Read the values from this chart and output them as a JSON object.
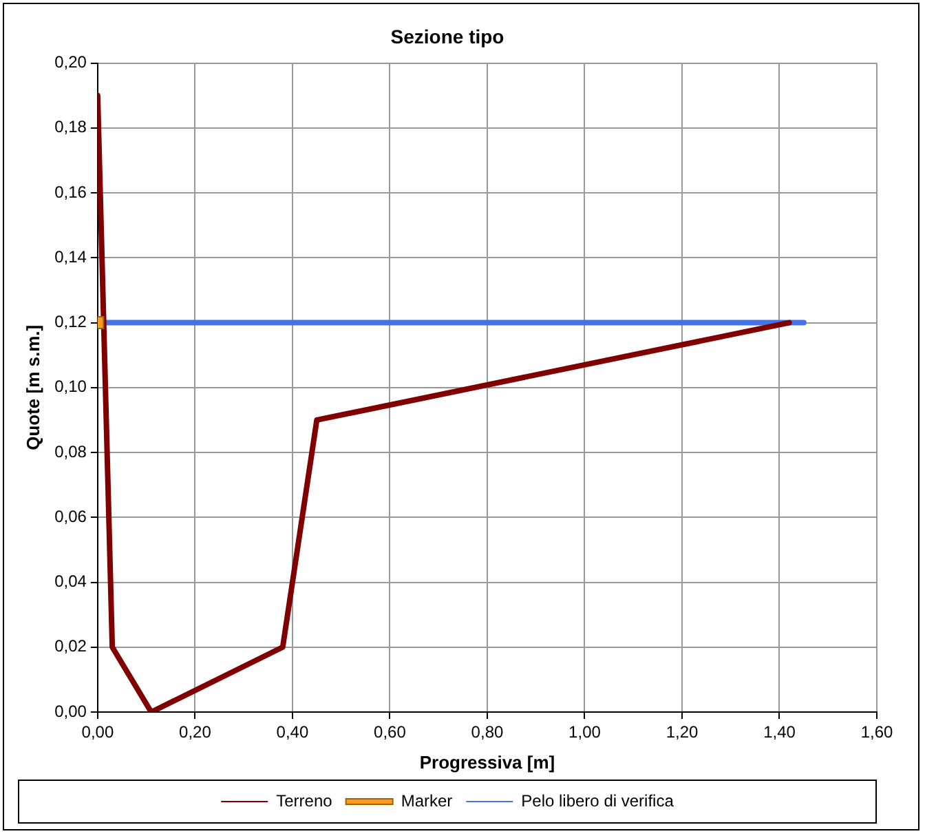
{
  "chart_data": {
    "type": "line",
    "title": "Sezione tipo",
    "xlabel": "Progressiva [m]",
    "ylabel": "Quote [m s.m.]",
    "series": [
      {
        "name": "Terreno",
        "color": "#800000",
        "x": [
          0,
          0.03,
          0.11,
          0.38,
          0.45,
          1.42
        ],
        "values": [
          0.19,
          0.02,
          0,
          0.02,
          0.09,
          0.12
        ]
      },
      {
        "name": "Marker",
        "type": "scatter",
        "marker": "square",
        "color": "#ff9922",
        "x": [
          0
        ],
        "values": [
          0.12
        ]
      },
      {
        "name": "Pelo libero di verifica",
        "color": "#4472e8",
        "x": [
          0,
          1.45
        ],
        "values": [
          0.12,
          0.12
        ]
      }
    ],
    "xlim": [
      0,
      1.6
    ],
    "xticks": [
      {
        "value": 0,
        "label": "0,00"
      },
      {
        "value": 0.2,
        "label": "0,20"
      },
      {
        "value": 0.4,
        "label": "0,40"
      },
      {
        "value": 0.6,
        "label": "0,60"
      },
      {
        "value": 0.8,
        "label": "0,80"
      },
      {
        "value": 1,
        "label": "1,00"
      },
      {
        "value": 1.2,
        "label": "1,20"
      },
      {
        "value": 1.4,
        "label": "1,40"
      },
      {
        "value": 1.6,
        "label": "1,60"
      }
    ],
    "ylim": [
      0,
      0.2
    ],
    "yticks": [
      {
        "value": 0,
        "label": "0,00"
      },
      {
        "value": 0.02,
        "label": "0,02"
      },
      {
        "value": 0.04,
        "label": "0,04"
      },
      {
        "value": 0.06,
        "label": "0,06"
      },
      {
        "value": 0.08,
        "label": "0,08"
      },
      {
        "value": 0.1,
        "label": "0,10"
      },
      {
        "value": 0.12,
        "label": "0,12"
      },
      {
        "value": 0.14,
        "label": "0,14"
      },
      {
        "value": 0.16,
        "label": "0,16"
      },
      {
        "value": 0.18,
        "label": "0,18"
      },
      {
        "value": 0.2,
        "label": "0,20"
      }
    ],
    "grid": true,
    "legend": "bottom",
    "line_style": "solid"
  }
}
